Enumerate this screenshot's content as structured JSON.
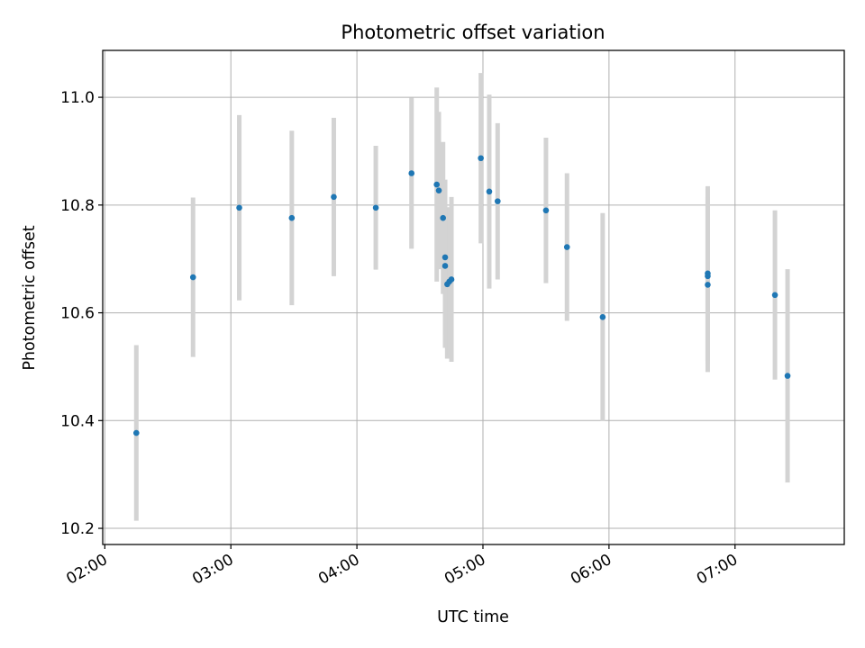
{
  "chart_data": {
    "type": "scatter",
    "title": "Photometric offset variation",
    "xlabel": "UTC time",
    "ylabel": "Photometric offset",
    "xlim": [
      "01:59",
      "07:52"
    ],
    "ylim": [
      10.17,
      11.087
    ],
    "grid": true,
    "x_ticks": [
      "02:00",
      "03:00",
      "04:00",
      "05:00",
      "06:00",
      "07:00"
    ],
    "y_ticks": [
      10.2,
      10.4,
      10.6,
      10.8,
      11.0
    ],
    "y_tick_labels": [
      "10.2",
      "10.4",
      "10.6",
      "10.8",
      "11.0"
    ],
    "colors": {
      "points": "#1f77b4",
      "errorbars": "#d3d3d3",
      "grid": "#b0b0b0"
    },
    "series": [
      {
        "x": [
          "02:15",
          "02:42",
          "03:04",
          "03:29",
          "03:49",
          "04:09",
          "04:26",
          "04:38",
          "04:39",
          "04:41",
          "04:42",
          "04:42",
          "04:43",
          "04:44",
          "04:45",
          "04:59",
          "05:03",
          "05:07",
          "05:30",
          "05:40",
          "05:57",
          "06:47",
          "06:47",
          "06:47",
          "07:19",
          "07:25"
        ],
        "y": [
          10.377,
          10.666,
          10.795,
          10.776,
          10.815,
          10.795,
          10.859,
          10.838,
          10.827,
          10.776,
          10.703,
          10.687,
          10.653,
          10.658,
          10.662,
          10.887,
          10.825,
          10.807,
          10.79,
          10.722,
          10.592,
          10.673,
          10.668,
          10.652,
          10.633,
          10.483
        ],
        "err": [
          0.163,
          0.148,
          0.172,
          0.162,
          0.147,
          0.115,
          0.14,
          0.18,
          0.146,
          0.141,
          0.144,
          0.152,
          0.138,
          0.138,
          0.153,
          0.158,
          0.18,
          0.145,
          0.135,
          0.137,
          0.193,
          0.162,
          0.162,
          0.162,
          0.157,
          0.198
        ]
      }
    ]
  }
}
